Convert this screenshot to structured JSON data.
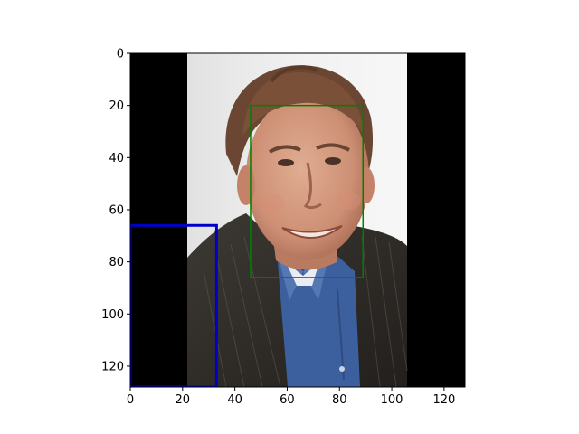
{
  "image": {
    "description_icon": "portrait-photo-icon",
    "pad_color": "#000000",
    "photo_background": "#eeeeee",
    "x_range": [
      0,
      128
    ],
    "y_range": [
      0,
      128
    ],
    "photo_x_range": [
      22,
      106
    ]
  },
  "axes": {
    "x_ticks": [
      {
        "value": 0,
        "label": "0"
      },
      {
        "value": 20,
        "label": "20"
      },
      {
        "value": 40,
        "label": "40"
      },
      {
        "value": 60,
        "label": "60"
      },
      {
        "value": 80,
        "label": "80"
      },
      {
        "value": 100,
        "label": "100"
      },
      {
        "value": 120,
        "label": "120"
      }
    ],
    "y_ticks": [
      {
        "value": 0,
        "label": "0"
      },
      {
        "value": 20,
        "label": "20"
      },
      {
        "value": 40,
        "label": "40"
      },
      {
        "value": 60,
        "label": "60"
      },
      {
        "value": 80,
        "label": "80"
      },
      {
        "value": 100,
        "label": "100"
      },
      {
        "value": 120,
        "label": "120"
      }
    ]
  },
  "boxes": [
    {
      "name": "face-box",
      "color": "#008000",
      "x0": 46,
      "y0": 20,
      "x1": 89,
      "y1": 86
    },
    {
      "name": "region-box",
      "color": "#0000cc",
      "x0": 0,
      "y0": 66,
      "x1": 33,
      "y1": 128
    }
  ]
}
